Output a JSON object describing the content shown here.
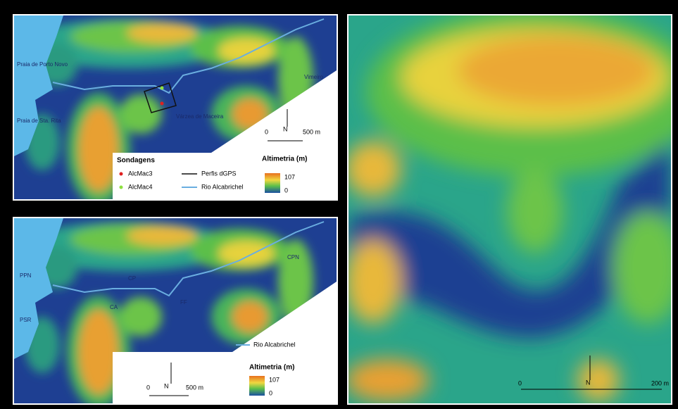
{
  "top_map": {
    "places": [
      "Praia de Porto Novo",
      "Praia de Sta. Rita",
      "Vimeiro",
      "Várzea de Maceira"
    ],
    "scale": {
      "north": "N",
      "zero": "0",
      "distance": "500 m"
    },
    "legend": {
      "title": "Sondagens",
      "points": [
        "AlcMac3",
        "AlcMac4"
      ],
      "lines": [
        "Perfis dGPS",
        "Rio Alcabrichel"
      ],
      "elevation": {
        "title": "Altimetria (m)",
        "max": "107",
        "min": "0"
      }
    }
  },
  "bottom_map": {
    "places": [
      "PPN",
      "PSR",
      "CP",
      "CA",
      "FF",
      "CPN"
    ],
    "scale": {
      "north": "N",
      "zero": "0",
      "distance": "500 m"
    },
    "legend": {
      "line": "Rio Alcabrichel",
      "elevation": {
        "title": "Altimetria (m)",
        "max": "107",
        "min": "0"
      }
    }
  },
  "detail_map": {
    "scale": {
      "north": "N",
      "zero": "0",
      "distance": "200 m"
    }
  }
}
